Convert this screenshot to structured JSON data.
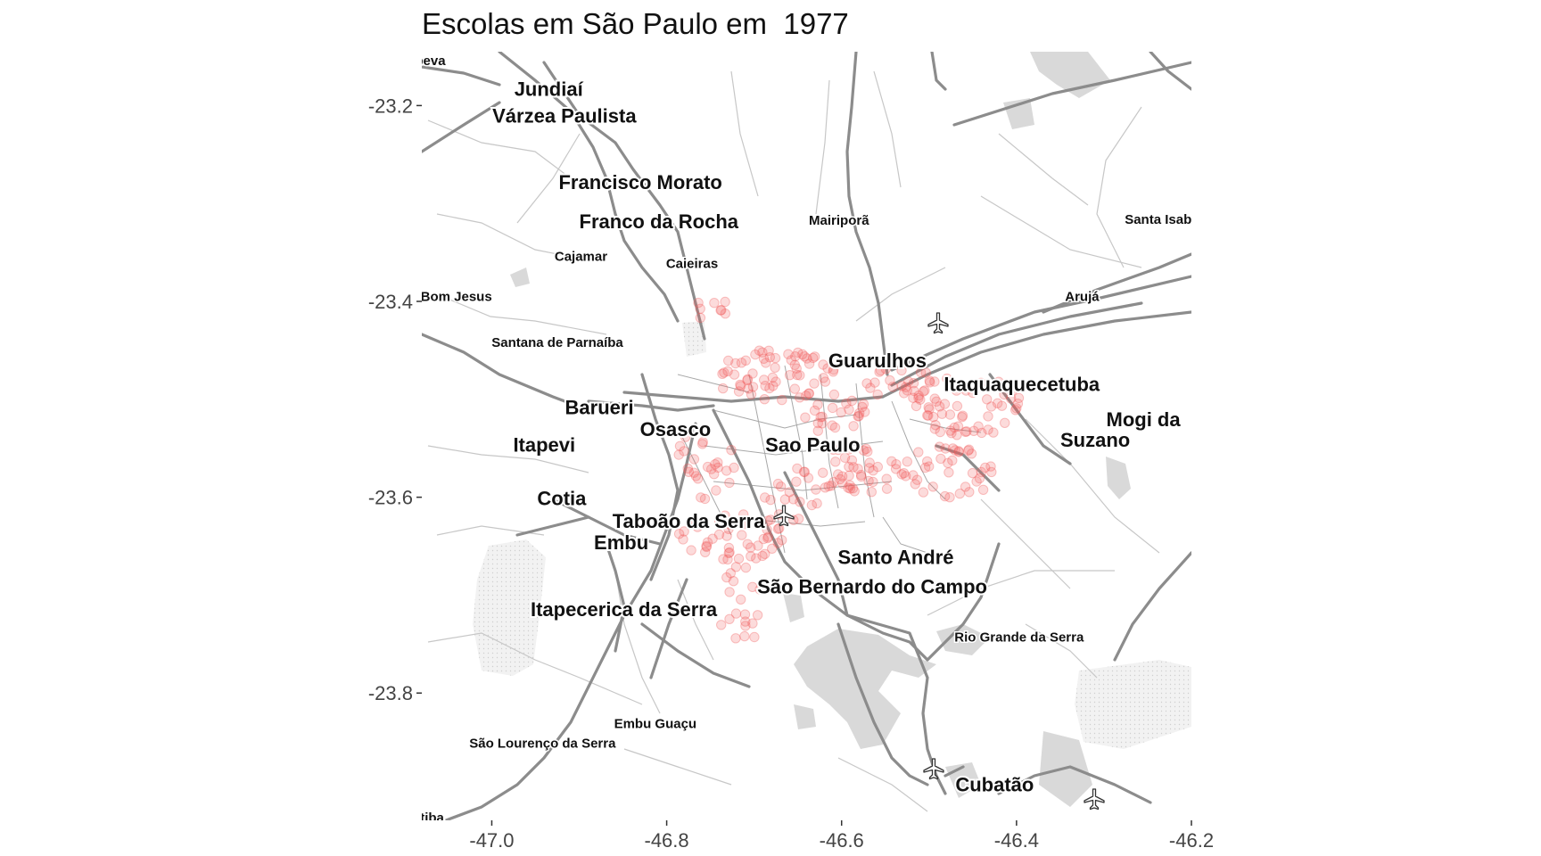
{
  "map": {
    "title": "Escolas em São Paulo em  1977",
    "x_ticks": [
      "-47.0",
      "-46.8",
      "-46.6",
      "-46.4",
      "-46.2"
    ],
    "y_ticks": [
      "-23.2",
      "-23.4",
      "-23.6",
      "-23.8"
    ],
    "extent": {
      "lon": [
        -47.08,
        -46.2
      ],
      "lat": [
        -23.93,
        -23.145
      ]
    },
    "point_color": "#f25a5a",
    "road_color": "#8c8c8c",
    "water_color": "#d9d9d9",
    "icons": [
      "airport-icon",
      "airport-icon",
      "airport-icon",
      "airport-icon"
    ],
    "places": [
      {
        "name": "upeva",
        "lon": -47.075,
        "lat": -23.155,
        "size": "small"
      },
      {
        "name": "Jundiaí",
        "lon": -46.935,
        "lat": -23.185,
        "size": "large"
      },
      {
        "name": "Várzea Paulista",
        "lon": -46.917,
        "lat": -23.212,
        "size": "large"
      },
      {
        "name": "Francisco Morato",
        "lon": -46.83,
        "lat": -23.28,
        "size": "large"
      },
      {
        "name": "Franco da Rocha",
        "lon": -46.809,
        "lat": -23.32,
        "size": "large"
      },
      {
        "name": "Mairiporã",
        "lon": -46.603,
        "lat": -23.318,
        "size": "small"
      },
      {
        "name": "Santa Isab",
        "lon": -46.238,
        "lat": -23.317,
        "size": "small"
      },
      {
        "name": "Cajamar",
        "lon": -46.898,
        "lat": -23.355,
        "size": "small"
      },
      {
        "name": "Caieiras",
        "lon": -46.771,
        "lat": -23.362,
        "size": "small"
      },
      {
        "name": "apora do Bom Jesus",
        "lon": -47.075,
        "lat": -23.396,
        "size": "small"
      },
      {
        "name": "Arujá",
        "lon": -46.325,
        "lat": -23.396,
        "size": "small"
      },
      {
        "name": "Santana de Parnaíba",
        "lon": -46.925,
        "lat": -23.443,
        "size": "small"
      },
      {
        "name": "Guarulhos",
        "lon": -46.559,
        "lat": -23.462,
        "size": "large"
      },
      {
        "name": "Itaquaquecetuba",
        "lon": -46.394,
        "lat": -23.486,
        "size": "large"
      },
      {
        "name": "Barueri",
        "lon": -46.877,
        "lat": -23.51,
        "size": "large"
      },
      {
        "name": "Mogi da",
        "lon": -46.255,
        "lat": -23.522,
        "size": "large"
      },
      {
        "name": "Osasco",
        "lon": -46.79,
        "lat": -23.532,
        "size": "large"
      },
      {
        "name": "Suzano",
        "lon": -46.31,
        "lat": -23.543,
        "size": "large"
      },
      {
        "name": "Itapevi",
        "lon": -46.94,
        "lat": -23.548,
        "size": "large"
      },
      {
        "name": "Sao Paulo",
        "lon": -46.633,
        "lat": -23.548,
        "size": "large"
      },
      {
        "name": "Cotia",
        "lon": -46.92,
        "lat": -23.603,
        "size": "large"
      },
      {
        "name": "Taboão da Serra",
        "lon": -46.775,
        "lat": -23.626,
        "size": "large"
      },
      {
        "name": "Embu",
        "lon": -46.852,
        "lat": -23.648,
        "size": "large"
      },
      {
        "name": "Santo André",
        "lon": -46.538,
        "lat": -23.663,
        "size": "large"
      },
      {
        "name": "São Bernardo do Campo",
        "lon": -46.565,
        "lat": -23.693,
        "size": "large"
      },
      {
        "name": "Itapecerica da Serra",
        "lon": -46.849,
        "lat": -23.716,
        "size": "large"
      },
      {
        "name": "Rio Grande da Serra",
        "lon": -46.397,
        "lat": -23.744,
        "size": "small"
      },
      {
        "name": "Embu Guaçu",
        "lon": -46.813,
        "lat": -23.832,
        "size": "small"
      },
      {
        "name": "São Lourenço da Serra",
        "lon": -46.942,
        "lat": -23.852,
        "size": "small"
      },
      {
        "name": "Cubatão",
        "lon": -46.425,
        "lat": -23.895,
        "size": "large"
      },
      {
        "name": "uitiba",
        "lon": -47.075,
        "lat": -23.928,
        "size": "small"
      }
    ]
  }
}
